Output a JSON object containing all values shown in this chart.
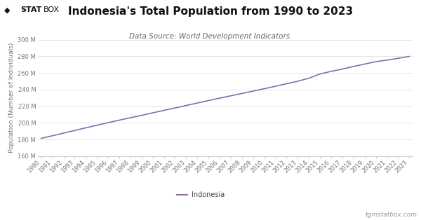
{
  "title": "Indonesia's Total Population from 1990 to 2023",
  "subtitle": "Data Source: World Development Indicators.",
  "ylabel": "Population (Number of Individuals)",
  "line_color": "#8B6BAE",
  "background_color": "#ffffff",
  "grid_color": "#e0e0e0",
  "years": [
    1990,
    1991,
    1992,
    1993,
    1994,
    1995,
    1996,
    1997,
    1998,
    1999,
    2000,
    2001,
    2002,
    2003,
    2004,
    2005,
    2006,
    2007,
    2008,
    2009,
    2010,
    2011,
    2012,
    2013,
    2014,
    2015,
    2016,
    2017,
    2018,
    2019,
    2020,
    2021,
    2022,
    2023
  ],
  "population": [
    181413000,
    184548000,
    187710000,
    190897000,
    194075000,
    197213000,
    200288000,
    203290000,
    206212000,
    209053000,
    212107000,
    215020000,
    217928000,
    220890000,
    223875000,
    226834000,
    229729000,
    232522000,
    235354000,
    238182000,
    241000000,
    244000000,
    247000000,
    250000000,
    253600000,
    258700000,
    261900000,
    264600000,
    267700000,
    270600000,
    273500000,
    275400000,
    277500000,
    279800000
  ],
  "ylim": [
    160000000,
    300000000
  ],
  "yticks": [
    160000000,
    180000000,
    200000000,
    220000000,
    240000000,
    260000000,
    280000000,
    300000000
  ],
  "legend_label": "Indonesia",
  "watermark": "tgmstatbox.com",
  "title_fontsize": 11,
  "subtitle_fontsize": 7.5,
  "axis_label_fontsize": 6.5,
  "tick_fontsize": 6,
  "legend_fontsize": 7,
  "logo_statbox_color": "#222222",
  "logo_diamond_color": "#222222"
}
